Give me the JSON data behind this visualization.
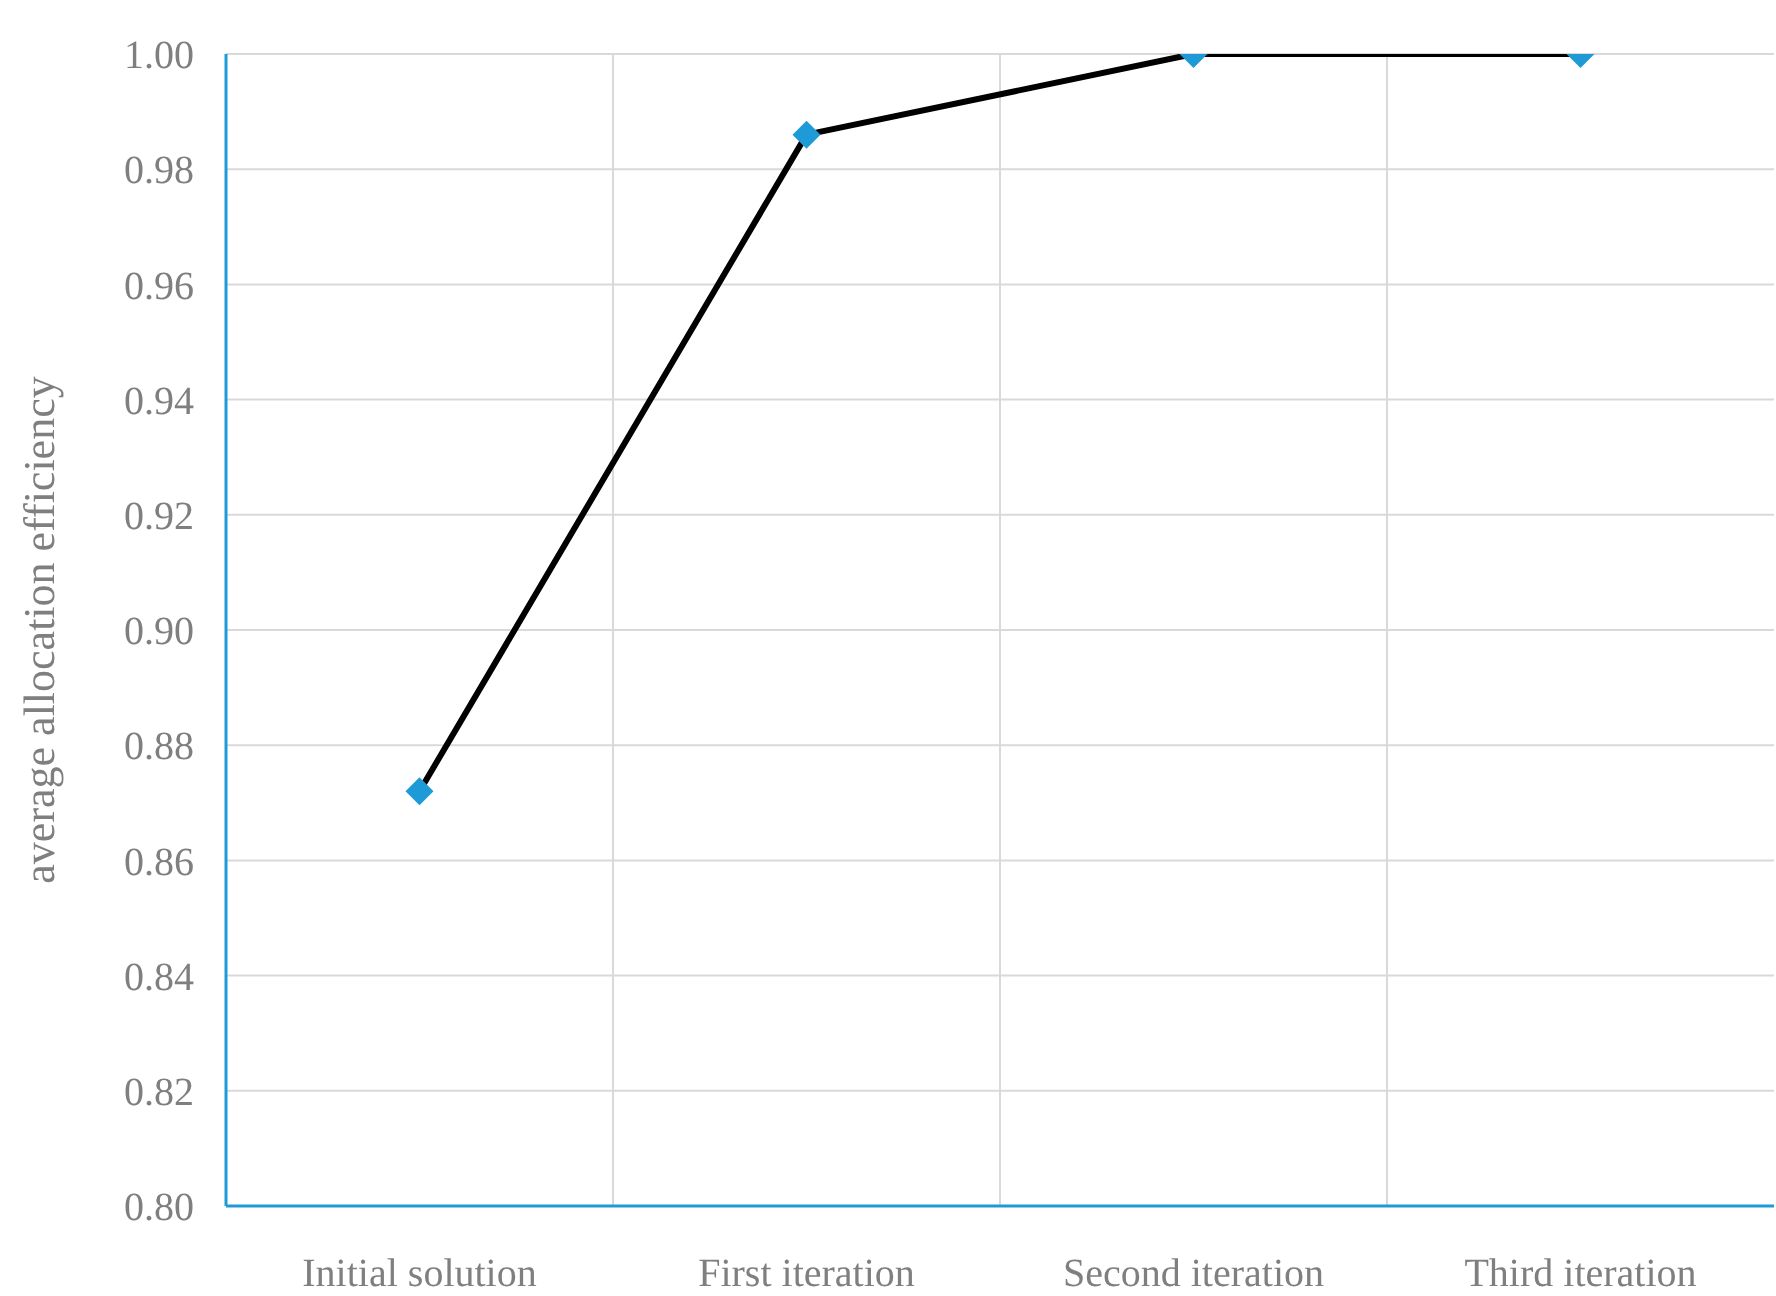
{
  "chart_data": {
    "type": "line",
    "ylabel": "average allocation efficiency",
    "categories": [
      "Initial solution",
      "First iteration",
      "Second iteration",
      "Third iteration"
    ],
    "series": [
      {
        "color": "#000000",
        "colors": [
          "#1e9bd7",
          "#1e9bd7",
          "#1e9bd7",
          "#1e9bd7"
        ],
        "values": [
          0.872,
          0.986,
          1.0,
          1.0
        ]
      }
    ],
    "marker": "diamond",
    "ylim": [
      0.8,
      1.0
    ],
    "yticks": [
      {
        "value": 0.8,
        "label": "0.80"
      },
      {
        "value": 0.82,
        "label": "0.82"
      },
      {
        "value": 0.84,
        "label": "0.84"
      },
      {
        "value": 0.86,
        "label": "0.86"
      },
      {
        "value": 0.88,
        "label": "0.88"
      },
      {
        "value": 0.9,
        "label": "0.90"
      },
      {
        "value": 0.92,
        "label": "0.92"
      },
      {
        "value": 0.94,
        "label": "0.94"
      },
      {
        "value": 0.96,
        "label": "0.96"
      },
      {
        "value": 0.98,
        "label": "0.98"
      },
      {
        "value": 1.0,
        "label": "1.00"
      }
    ],
    "grid": true
  }
}
